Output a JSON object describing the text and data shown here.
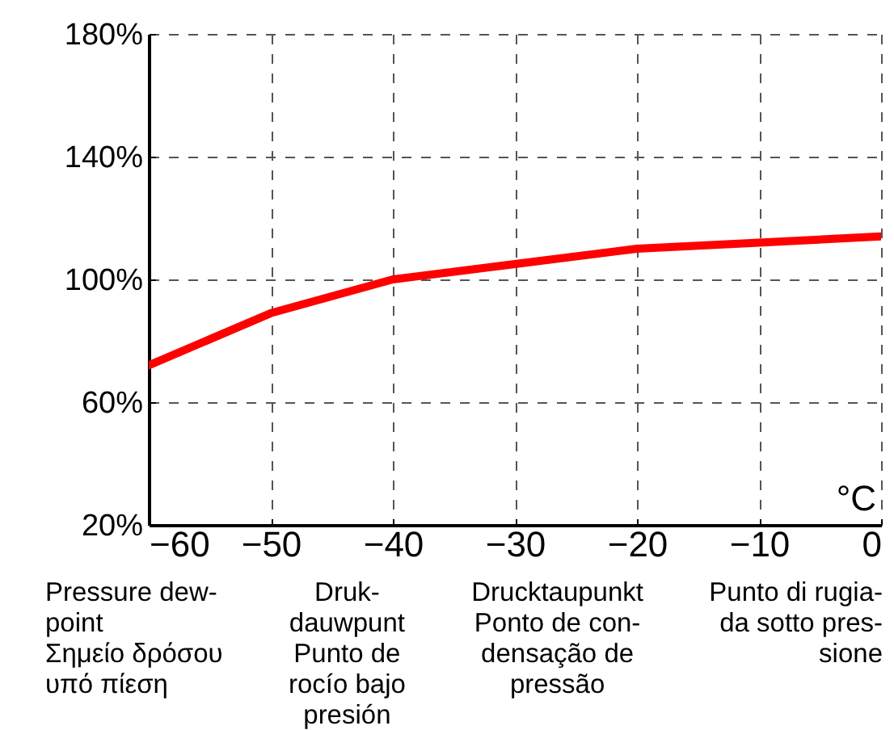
{
  "chart_data": {
    "type": "line",
    "xlabel": "°C",
    "x": [
      -60,
      -50,
      -40,
      -30,
      -20,
      -10,
      0
    ],
    "series": [
      {
        "color": "#ff0000",
        "values": [
          72,
          89,
          100,
          105,
          110,
          112,
          114
        ]
      }
    ],
    "xlim": [
      -60,
      0
    ],
    "xticks": [
      -60,
      -50,
      -40,
      -30,
      -20,
      -10,
      0
    ],
    "ylim": [
      20,
      180
    ],
    "yticks": [
      {
        "value": 20,
        "label": "20%"
      },
      {
        "value": 60,
        "label": "60%"
      },
      {
        "value": 100,
        "label": "100%"
      },
      {
        "value": 140,
        "label": "140%"
      },
      {
        "value": 180,
        "label": "180%"
      }
    ],
    "grid": true,
    "marker": "none",
    "line_style": "solid",
    "annotations": [
      "Pressure dew-\npoint\nΣημείο δρόσου\nυπό πίεση",
      "Druk-\ndauwpunt\nPunto de\nrocío bajo\npresión",
      "Drucktaupunkt\nPonto de con-\ndensação de\npressão",
      "Punto di rugia-\nda sotto pres-\nsione"
    ]
  }
}
